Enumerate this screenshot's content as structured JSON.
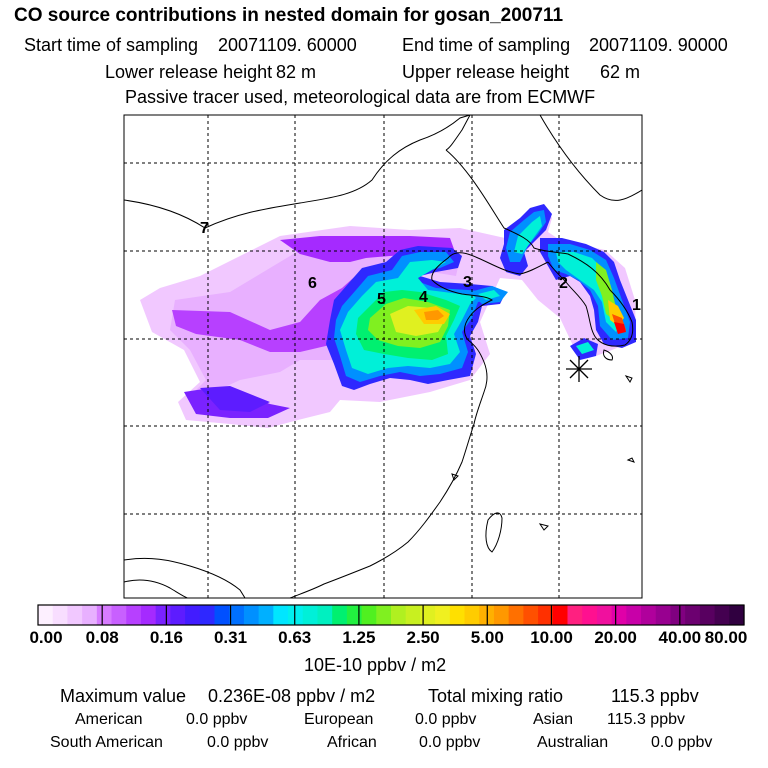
{
  "header": {
    "title": "CO  source contributions in nested domain for gosan_200711",
    "start_label": "Start time of sampling",
    "start_value": "20071109. 60000",
    "end_label": "End time of sampling",
    "end_value": "20071109. 90000",
    "lower_label": "Lower release height",
    "lower_value": "82 m",
    "upper_label": "Upper release height",
    "upper_value": "62 m",
    "note": "Passive tracer used, meteorological data are from ECMWF"
  },
  "map": {
    "markers": [
      "7",
      "6",
      "5",
      "4",
      "3",
      "2",
      "1"
    ],
    "receptor_symbol": "star"
  },
  "colorbar": {
    "labels": [
      "0.00",
      "0.08",
      "0.16",
      "0.31",
      "0.63",
      "1.25",
      "2.50",
      "5.00",
      "10.00",
      "20.00",
      "40.00",
      "80.00"
    ],
    "unit": "10E-10 ppbv / m2",
    "colors": [
      "#fdf0ff",
      "#f8deff",
      "#f1c8ff",
      "#e8b0ff",
      "#d77cff",
      "#c860ff",
      "#b740ff",
      "#a52aff",
      "#7a22ff",
      "#5d1cff",
      "#421cff",
      "#2e28ff",
      "#0050ff",
      "#0070ff",
      "#0090ff",
      "#00b0ff",
      "#00e6ff",
      "#00f0ee",
      "#00f0d8",
      "#00f0c0",
      "#00f070",
      "#22f040",
      "#50f020",
      "#80f020",
      "#b0f020",
      "#c8f020",
      "#e0f020",
      "#f0f020",
      "#ffe000",
      "#ffcc00",
      "#ffb000",
      "#ff9800",
      "#ff7000",
      "#ff5000",
      "#ff3000",
      "#ff0000",
      "#ff2080",
      "#ff1090",
      "#f0109e",
      "#e000a8",
      "#c800a8",
      "#b0009c",
      "#980090",
      "#800080",
      "#6c0070",
      "#580060",
      "#440050",
      "#300040"
    ]
  },
  "stats": {
    "max_label": "Maximum value",
    "max_value": "0.236E-08 ppbv / m2",
    "total_label": "Total mixing ratio",
    "total_value": "115.3 ppbv",
    "regions": [
      {
        "name": "American",
        "value": "0.0 ppbv"
      },
      {
        "name": "European",
        "value": "0.0 ppbv"
      },
      {
        "name": "Asian",
        "value": "115.3 ppbv"
      },
      {
        "name": "South American",
        "value": "0.0 ppbv"
      },
      {
        "name": "African",
        "value": "0.0 ppbv"
      },
      {
        "name": "Australian",
        "value": "0.0 ppbv"
      }
    ]
  }
}
